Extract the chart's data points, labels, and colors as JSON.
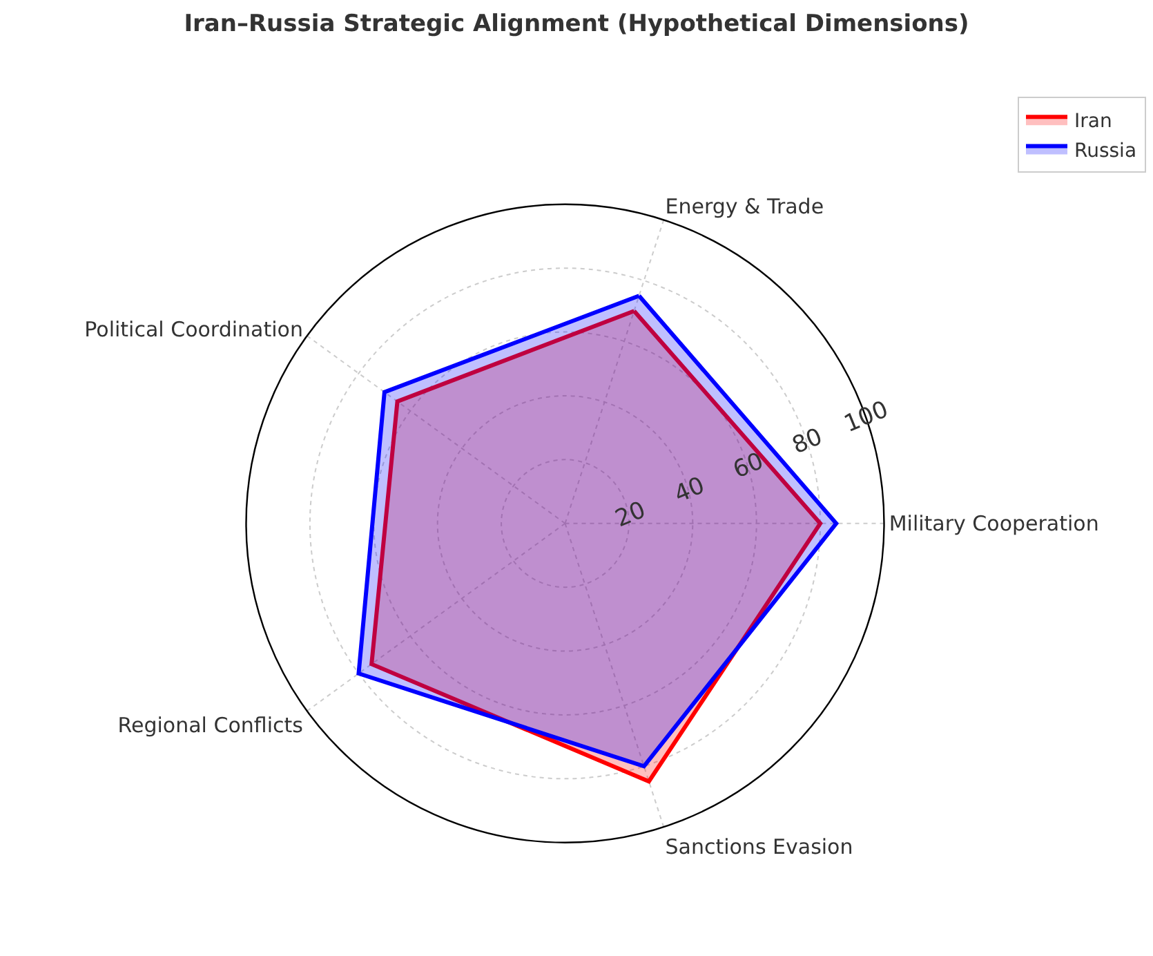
{
  "chart_data": {
    "type": "radar",
    "title": "Iran–Russia Strategic Alignment (Hypothetical Dimensions)",
    "categories": [
      "Energy & Trade",
      "Military Cooperation",
      "Sanctions Evasion",
      "Regional Conflicts",
      "Political Coordination"
    ],
    "series": [
      {
        "name": "Iran",
        "color": "#ff0000",
        "values": [
          70,
          80,
          85,
          75,
          65
        ]
      },
      {
        "name": "Russia",
        "color": "#0000ff",
        "values": [
          75,
          85,
          80,
          80,
          70
        ]
      }
    ],
    "ylim": [
      0,
      100
    ],
    "yticks": [
      20,
      40,
      60,
      80,
      100
    ],
    "grid": true,
    "legend": "top right",
    "marker": "none",
    "line_style": "solid"
  }
}
